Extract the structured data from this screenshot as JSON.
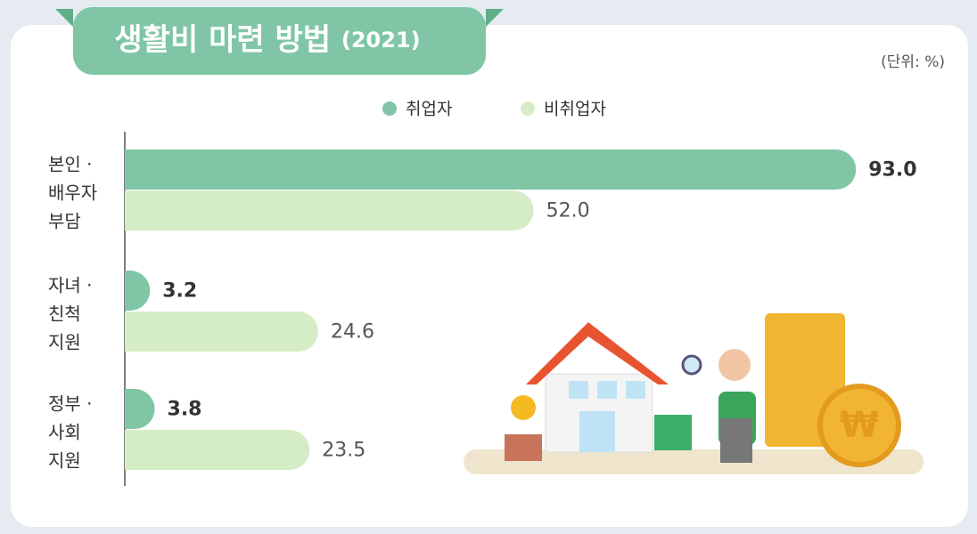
{
  "chart_data": {
    "type": "bar",
    "orientation": "horizontal",
    "title": "생활비 마련 방법",
    "title_year": "(2021)",
    "unit_note": "(단위: %)",
    "categories": [
      [
        "본인 ·",
        "배우자",
        "부담"
      ],
      [
        "자녀 ·",
        "친척",
        "지원"
      ],
      [
        "정부 ·",
        "사회",
        "지원"
      ]
    ],
    "series": [
      {
        "name": "취업자",
        "color": "#80c6a6",
        "values": [
          93.0,
          3.2,
          3.8
        ],
        "value_labels": [
          "93.0",
          "3.2",
          "3.8"
        ]
      },
      {
        "name": "비취업자",
        "color": "#d5edc6",
        "values": [
          52.0,
          24.6,
          23.5
        ],
        "value_labels": [
          "52.0",
          "24.6",
          "23.5"
        ]
      }
    ],
    "xlim": [
      0,
      100
    ]
  }
}
